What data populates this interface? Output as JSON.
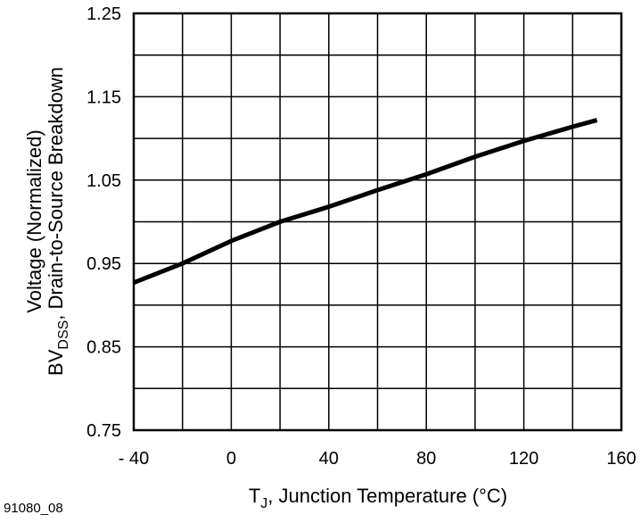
{
  "chart_data": {
    "type": "line",
    "y_label_parts": [
      "BV",
      "DSS",
      ", Drain-to-Source Breakdown"
    ],
    "y_label_line2": "Voltage (Normalized)",
    "x_label_parts": [
      "T",
      "J",
      ", Junction Temperature (°C)"
    ],
    "figure_code": "91080_08",
    "x": [
      -40,
      -20,
      0,
      20,
      40,
      60,
      80,
      100,
      120,
      140,
      150
    ],
    "series": [
      {
        "color": "#000000",
        "values": [
          0.927,
          0.95,
          0.977,
          1.0,
          1.018,
          1.038,
          1.057,
          1.078,
          1.097,
          1.114,
          1.122
        ]
      }
    ],
    "xlim": [
      -40,
      160
    ],
    "xticks": [
      {
        "value": -40,
        "label": "- 40"
      },
      0,
      40,
      80,
      120,
      160
    ],
    "xminor_ticks": [
      -20,
      20,
      60,
      100,
      140
    ],
    "ylim": [
      0.75,
      1.25
    ],
    "yticks": [
      0.75,
      0.85,
      0.95,
      1.05,
      1.15,
      1.25
    ],
    "yminor_ticks": [
      0.8,
      0.9,
      1.0,
      1.1,
      1.2
    ],
    "grid": true
  }
}
